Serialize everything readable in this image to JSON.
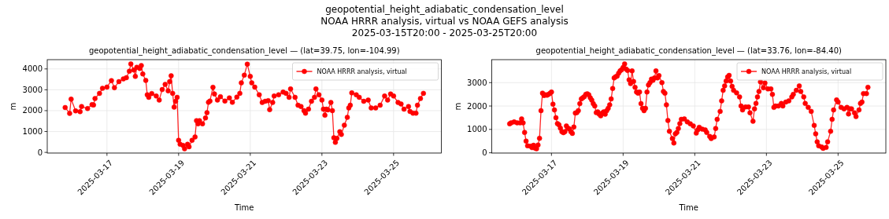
{
  "chart_data": [
    {
      "type": "line",
      "title": "geopotential_height_adiabatic_condensation_level\nNOAA HRRR analysis, virtual vs NOAA GEFS analysis\n2025-03-15T20:00 - 2025-03-25T20:00",
      "subtitle": "geopotential_height_adiabatic_condensation_level — (lat=39.75, lon=-104.99)",
      "xlabel": "Time",
      "ylabel": "m",
      "xlim": [
        "2025-03-15T08:00",
        "2025-03-26T08:00"
      ],
      "xticks": [
        "2025-03-17",
        "2025-03-19",
        "2025-03-21",
        "2025-03-23",
        "2025-03-25"
      ],
      "ylim": [
        -33,
        4444
      ],
      "yticks": [
        0,
        1000,
        2000,
        3000,
        4000
      ],
      "grid": true,
      "legend": "top right",
      "marker": "circle",
      "line_style": "solid",
      "series": [
        {
          "name": "NOAA HRRR analysis, virtual",
          "color": "#ff0000",
          "x": [
            "2025-03-15T20:00",
            "2025-03-15T23:00",
            "2025-03-16T00:00",
            "2025-03-16T03:00",
            "2025-03-16T06:00",
            "2025-03-16T07:00",
            "2025-03-16T11:00",
            "2025-03-16T14:00",
            "2025-03-16T15:00",
            "2025-03-16T16:00",
            "2025-03-16T19:00",
            "2025-03-16T21:00",
            "2025-03-17T00:00",
            "2025-03-17T03:00",
            "2025-03-17T05:00",
            "2025-03-17T08:00",
            "2025-03-17T11:00",
            "2025-03-17T13:00",
            "2025-03-17T15:00",
            "2025-03-17T16:00",
            "2025-03-17T18:00",
            "2025-03-17T19:00",
            "2025-03-17T20:00",
            "2025-03-17T22:00",
            "2025-03-17T23:00",
            "2025-03-18T00:00",
            "2025-03-18T02:00",
            "2025-03-18T03:00",
            "2025-03-18T04:00",
            "2025-03-18T06:00",
            "2025-03-18T09:00",
            "2025-03-18T11:00",
            "2025-03-18T13:00",
            "2025-03-18T15:00",
            "2025-03-18T17:00",
            "2025-03-18T18:00",
            "2025-03-18T19:00",
            "2025-03-18T20:00",
            "2025-03-18T21:00",
            "2025-03-18T22:00",
            "2025-03-18T23:00",
            "2025-03-19T00:00",
            "2025-03-19T01:00",
            "2025-03-19T03:00",
            "2025-03-19T04:00",
            "2025-03-19T06:00",
            "2025-03-19T07:00",
            "2025-03-19T09:00",
            "2025-03-19T11:00",
            "2025-03-19T12:00",
            "2025-03-19T13:00",
            "2025-03-19T14:00",
            "2025-03-19T16:00",
            "2025-03-19T18:00",
            "2025-03-19T19:00",
            "2025-03-19T20:00",
            "2025-03-19T21:00",
            "2025-03-19T23:00",
            "2025-03-20T00:00",
            "2025-03-20T02:00",
            "2025-03-20T04:00",
            "2025-03-20T07:00",
            "2025-03-20T10:00",
            "2025-03-20T12:00",
            "2025-03-20T15:00",
            "2025-03-20T17:00",
            "2025-03-20T18:00",
            "2025-03-20T20:00",
            "2025-03-20T22:00",
            "2025-03-21T00:00",
            "2025-03-21T01:00",
            "2025-03-21T03:00",
            "2025-03-21T06:00",
            "2025-03-21T08:00",
            "2025-03-21T10:00",
            "2025-03-21T12:00",
            "2025-03-21T13:00",
            "2025-03-21T15:00",
            "2025-03-21T16:00",
            "2025-03-21T19:00",
            "2025-03-21T22:00",
            "2025-03-22T00:00",
            "2025-03-22T02:00",
            "2025-03-22T03:00",
            "2025-03-22T06:00",
            "2025-03-22T08:00",
            "2025-03-22T10:00",
            "2025-03-22T12:00",
            "2025-03-22T13:00",
            "2025-03-22T15:00",
            "2025-03-22T17:00",
            "2025-03-22T19:00",
            "2025-03-22T20:00",
            "2025-03-22T22:00",
            "2025-03-23T00:00",
            "2025-03-23T01:00",
            "2025-03-23T02:00",
            "2025-03-23T03:00",
            "2025-03-23T04:00",
            "2025-03-23T06:00",
            "2025-03-23T07:00",
            "2025-03-23T08:00",
            "2025-03-23T09:00",
            "2025-03-23T10:00",
            "2025-03-23T12:00",
            "2025-03-23T13:00",
            "2025-03-23T15:00",
            "2025-03-23T17:00",
            "2025-03-23T18:00",
            "2025-03-23T19:00",
            "2025-03-23T20:00",
            "2025-03-23T23:00",
            "2025-03-24T01:00",
            "2025-03-24T04:00",
            "2025-03-24T07:00",
            "2025-03-24T09:00",
            "2025-03-24T12:00",
            "2025-03-24T15:00",
            "2025-03-24T18:00",
            "2025-03-24T20:00",
            "2025-03-24T22:00",
            "2025-03-25T00:00",
            "2025-03-25T03:00",
            "2025-03-25T05:00",
            "2025-03-25T07:00",
            "2025-03-25T10:00",
            "2025-03-25T11:00",
            "2025-03-25T13:00",
            "2025-03-25T15:00",
            "2025-03-25T16:00",
            "2025-03-25T18:00",
            "2025-03-25T20:00"
          ],
          "values": [
            2150,
            1870,
            2550,
            1990,
            1950,
            2200,
            2100,
            2290,
            2270,
            2580,
            2830,
            3070,
            3130,
            3440,
            3100,
            3390,
            3520,
            3580,
            3890,
            4240,
            3950,
            3640,
            4080,
            4020,
            4160,
            3760,
            3450,
            2760,
            2640,
            2820,
            2700,
            2510,
            3010,
            3260,
            2950,
            3390,
            3670,
            2830,
            2170,
            2450,
            2640,
            580,
            390,
            330,
            170,
            390,
            270,
            580,
            740,
            1520,
            1370,
            1520,
            1370,
            1650,
            1900,
            2400,
            2460,
            3120,
            2800,
            2510,
            2670,
            2460,
            2610,
            2400,
            2650,
            2830,
            3330,
            3700,
            4230,
            3640,
            3330,
            3130,
            2760,
            2390,
            2450,
            2480,
            2050,
            2390,
            2700,
            2760,
            2890,
            2830,
            2640,
            3040,
            2640,
            2260,
            2200,
            2000,
            1880,
            2070,
            2450,
            2640,
            3040,
            2760,
            2510,
            2070,
            1780,
            2070,
            2040,
            2390,
            2000,
            700,
            480,
            670,
            990,
            860,
            1300,
            1680,
            2130,
            2260,
            2850,
            2760,
            2640,
            2450,
            2510,
            2130,
            2130,
            2260,
            2700,
            2510,
            2800,
            2700,
            2390,
            2320,
            2070,
            2200,
            1960,
            1880,
            1880,
            2260,
            2580,
            2830
          ]
        }
      ]
    },
    {
      "type": "line",
      "subtitle": "geopotential_height_adiabatic_condensation_level — (lat=33.76, lon=-84.40)",
      "xlabel": "Time",
      "ylabel": "m",
      "xlim": [
        "2025-03-15T08:00",
        "2025-03-26T08:00"
      ],
      "xticks": [
        "2025-03-17",
        "2025-03-19",
        "2025-03-21",
        "2025-03-23",
        "2025-03-25"
      ],
      "ylim": [
        -12,
        3982
      ],
      "yticks": [
        0,
        1000,
        2000,
        3000
      ],
      "grid": true,
      "legend": "top right",
      "marker": "circle",
      "line_style": "solid",
      "series": [
        {
          "name": "NOAA HRRR analysis, virtual",
          "color": "#ff0000",
          "x": [
            "2025-03-15T20:00",
            "2025-03-15T21:00",
            "2025-03-15T23:00",
            "2025-03-16T01:00",
            "2025-03-16T03:00",
            "2025-03-16T04:00",
            "2025-03-16T05:00",
            "2025-03-16T06:00",
            "2025-03-16T07:00",
            "2025-03-16T08:00",
            "2025-03-16T10:00",
            "2025-03-16T11:00",
            "2025-03-16T12:00",
            "2025-03-16T13:00",
            "2025-03-16T14:00",
            "2025-03-16T15:00",
            "2025-03-16T16:00",
            "2025-03-16T17:00",
            "2025-03-16T18:00",
            "2025-03-16T19:00",
            "2025-03-16T20:00",
            "2025-03-16T21:00",
            "2025-03-16T22:00",
            "2025-03-16T23:00",
            "2025-03-17T00:00",
            "2025-03-17T01:00",
            "2025-03-17T02:00",
            "2025-03-17T03:00",
            "2025-03-17T04:00",
            "2025-03-17T05:00",
            "2025-03-17T06:00",
            "2025-03-17T07:00",
            "2025-03-17T08:00",
            "2025-03-17T09:00",
            "2025-03-17T10:00",
            "2025-03-17T11:00",
            "2025-03-17T12:00",
            "2025-03-17T13:00",
            "2025-03-17T14:00",
            "2025-03-17T15:00",
            "2025-03-17T16:00",
            "2025-03-17T17:00",
            "2025-03-17T18:00",
            "2025-03-17T19:00",
            "2025-03-17T20:00",
            "2025-03-17T21:00",
            "2025-03-17T22:00",
            "2025-03-17T23:00",
            "2025-03-18T00:00",
            "2025-03-18T01:00",
            "2025-03-18T02:00",
            "2025-03-18T03:00",
            "2025-03-18T04:00",
            "2025-03-18T05:00",
            "2025-03-18T06:00",
            "2025-03-18T07:00",
            "2025-03-18T08:00",
            "2025-03-18T09:00",
            "2025-03-18T10:00",
            "2025-03-18T11:00",
            "2025-03-18T12:00",
            "2025-03-18T13:00",
            "2025-03-18T14:00",
            "2025-03-18T15:00",
            "2025-03-18T16:00",
            "2025-03-18T17:00",
            "2025-03-18T18:00",
            "2025-03-18T19:00",
            "2025-03-18T20:00",
            "2025-03-18T21:00",
            "2025-03-18T22:00",
            "2025-03-18T23:00",
            "2025-03-19T00:00",
            "2025-03-19T01:00",
            "2025-03-19T02:00",
            "2025-03-19T03:00",
            "2025-03-19T04:00",
            "2025-03-19T05:00",
            "2025-03-19T06:00",
            "2025-03-19T07:00",
            "2025-03-19T08:00",
            "2025-03-19T09:00",
            "2025-03-19T10:00",
            "2025-03-19T11:00",
            "2025-03-19T12:00",
            "2025-03-19T13:00",
            "2025-03-19T14:00",
            "2025-03-19T15:00",
            "2025-03-19T16:00",
            "2025-03-19T17:00",
            "2025-03-19T18:00",
            "2025-03-19T19:00",
            "2025-03-19T20:00",
            "2025-03-19T21:00",
            "2025-03-19T22:00",
            "2025-03-19T23:00",
            "2025-03-20T00:00",
            "2025-03-20T02:00",
            "2025-03-20T03:00",
            "2025-03-20T04:00",
            "2025-03-20T05:00",
            "2025-03-20T06:00",
            "2025-03-20T07:00",
            "2025-03-20T09:00",
            "2025-03-20T10:00",
            "2025-03-20T11:00",
            "2025-03-20T12:00",
            "2025-03-20T13:00",
            "2025-03-20T14:00",
            "2025-03-20T15:00",
            "2025-03-20T17:00",
            "2025-03-20T19:00",
            "2025-03-20T21:00",
            "2025-03-20T23:00",
            "2025-03-21T01:00",
            "2025-03-21T02:00",
            "2025-03-21T03:00",
            "2025-03-21T05:00",
            "2025-03-21T07:00",
            "2025-03-21T08:00",
            "2025-03-21T10:00",
            "2025-03-21T11:00",
            "2025-03-21T13:00",
            "2025-03-21T14:00",
            "2025-03-21T15:00",
            "2025-03-21T17:00",
            "2025-03-21T18:00",
            "2025-03-21T19:00",
            "2025-03-21T20:00",
            "2025-03-21T21:00",
            "2025-03-21T22:00",
            "2025-03-21T23:00",
            "2025-03-22T00:00",
            "2025-03-22T01:00",
            "2025-03-22T02:00",
            "2025-03-22T04:00",
            "2025-03-22T06:00",
            "2025-03-22T07:00",
            "2025-03-22T08:00",
            "2025-03-22T10:00",
            "2025-03-22T12:00",
            "2025-03-22T13:00",
            "2025-03-22T15:00",
            "2025-03-22T16:00",
            "2025-03-22T17:00",
            "2025-03-22T18:00",
            "2025-03-22T19:00",
            "2025-03-22T20:00",
            "2025-03-22T22:00",
            "2025-03-22T23:00",
            "2025-03-23T01:00",
            "2025-03-23T03:00",
            "2025-03-23T04:00",
            "2025-03-23T05:00",
            "2025-03-23T06:00",
            "2025-03-23T08:00",
            "2025-03-23T10:00",
            "2025-03-23T11:00",
            "2025-03-23T13:00",
            "2025-03-23T15:00",
            "2025-03-23T17:00",
            "2025-03-23T18:00",
            "2025-03-23T20:00",
            "2025-03-23T22:00",
            "2025-03-23T23:00",
            "2025-03-24T01:00",
            "2025-03-24T02:00",
            "2025-03-24T04:00",
            "2025-03-24T06:00",
            "2025-03-24T08:00",
            "2025-03-24T09:00",
            "2025-03-24T10:00",
            "2025-03-24T11:00",
            "2025-03-24T13:00",
            "2025-03-24T14:00",
            "2025-03-24T16:00",
            "2025-03-24T17:00",
            "2025-03-24T19:00",
            "2025-03-24T20:00",
            "2025-03-24T21:00",
            "2025-03-24T23:00",
            "2025-03-25T00:00",
            "2025-03-25T02:00",
            "2025-03-25T04:00",
            "2025-03-25T06:00",
            "2025-03-25T07:00",
            "2025-03-25T08:00",
            "2025-03-25T09:00",
            "2025-03-25T11:00",
            "2025-03-25T12:00",
            "2025-03-25T14:00",
            "2025-03-25T15:00",
            "2025-03-25T16:00",
            "2025-03-25T17:00",
            "2025-03-25T19:00",
            "2025-03-25T20:00"
          ],
          "values": [
            1240,
            1280,
            1320,
            1280,
            1280,
            1450,
            1280,
            870,
            500,
            300,
            280,
            220,
            320,
            200,
            170,
            330,
            620,
            1800,
            2550,
            2450,
            2480,
            2460,
            2500,
            2540,
            2600,
            2080,
            1830,
            1500,
            1250,
            1200,
            1050,
            900,
            860,
            900,
            1150,
            1050,
            1020,
            900,
            830,
            1100,
            1700,
            1720,
            1800,
            2100,
            2300,
            2350,
            2400,
            2500,
            2520,
            2480,
            2350,
            2250,
            2100,
            2000,
            1720,
            1750,
            1650,
            1580,
            1700,
            1750,
            1650,
            1800,
            1900,
            2050,
            2300,
            2750,
            3200,
            3250,
            3280,
            3400,
            3500,
            3550,
            3650,
            3800,
            3580,
            3520,
            3120,
            2960,
            3500,
            3050,
            2800,
            2600,
            2550,
            2600,
            2100,
            1900,
            1800,
            1900,
            2600,
            2900,
            3000,
            3150,
            3100,
            3200,
            3500,
            3200,
            3300,
            3000,
            2620,
            2550,
            2050,
            1380,
            920,
            610,
            420,
            810,
            870,
            1040,
            1250,
            1430,
            1450,
            1320,
            1240,
            1150,
            840,
            980,
            1090,
            1010,
            980,
            870,
            700,
            610,
            680,
            1040,
            1430,
            1770,
            2220,
            2670,
            2860,
            3070,
            3240,
            3310,
            3070,
            2840,
            2670,
            2560,
            2390,
            2000,
            1830,
            1960,
            1960,
            1710,
            1350,
            1880,
            2110,
            2390,
            2620,
            3030,
            2780,
            2980,
            2730,
            2730,
            2500,
            1940,
            2000,
            2000,
            2110,
            2000,
            2170,
            2220,
            2390,
            2500,
            2670,
            2860,
            2620,
            2390,
            2110,
            1940,
            1770,
            1170,
            810,
            470,
            300,
            250,
            190,
            230,
            470,
            920,
            1430,
            1830,
            2260,
            2170,
            1940,
            1880,
            1940,
            1660,
            1880,
            1880,
            1710,
            1550,
            1830,
            2110,
            2170,
            2530,
            2530,
            2800
          ]
        }
      ]
    }
  ]
}
